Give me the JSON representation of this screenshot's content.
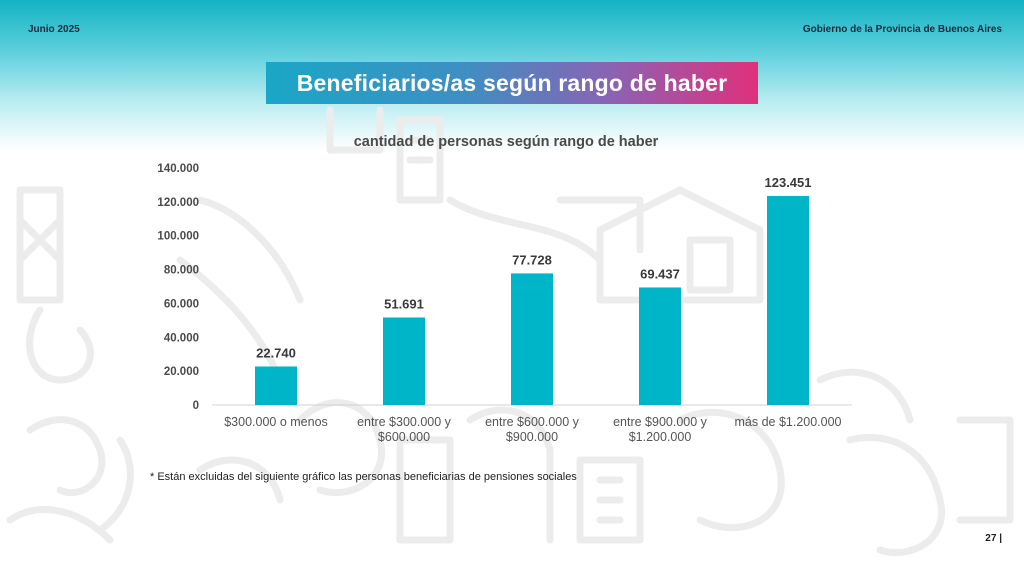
{
  "header": {
    "date": "Junio 2025",
    "organization": "Gobierno de la Provincia de Buenos Aires",
    "title": "Beneficiarios/as según rango de haber"
  },
  "chart_data": {
    "type": "bar",
    "title": "cantidad de personas según rango de haber",
    "categories": [
      [
        "$300.000 o menos"
      ],
      [
        "entre $300.000 y",
        "$600.000"
      ],
      [
        "entre $600.000 y",
        "$900.000"
      ],
      [
        "entre $900.000 y",
        "$1.200.000"
      ],
      [
        "más de $1.200.000"
      ]
    ],
    "values": [
      22740,
      51691,
      77728,
      69437,
      123451
    ],
    "value_labels": [
      "22.740",
      "51.691",
      "77.728",
      "69.437",
      "123.451"
    ],
    "yticks": [
      "0",
      "20.000",
      "40.000",
      "60.000",
      "80.000",
      "100.000",
      "120.000",
      "140.000"
    ],
    "ylim": [
      0,
      140000
    ],
    "bar_color": "#00b5c8",
    "grid": false,
    "legend": "none"
  },
  "footnote": "* Están excluidas del siguiente gráfico las personas beneficiarias de pensiones sociales",
  "page_number": "27 |"
}
